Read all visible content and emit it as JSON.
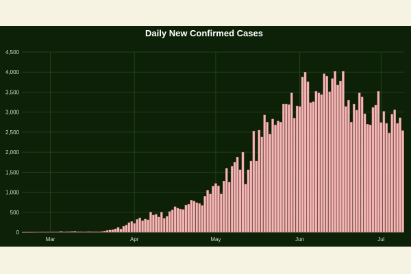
{
  "chart_data": {
    "type": "bar",
    "title": "Daily New Confirmed Cases",
    "xlabel": "",
    "ylabel": "",
    "ylim": [
      0,
      4500
    ],
    "yticks": [
      0,
      500,
      1000,
      1500,
      2000,
      2500,
      3000,
      3500,
      4000,
      4500
    ],
    "ytick_labels": [
      "0",
      "500",
      "1,000",
      "1,500",
      "2,000",
      "2,500",
      "3,000",
      "3,500",
      "4,000",
      "4,500"
    ],
    "xtick_labels": [
      {
        "label": "Mar",
        "index": 10
      },
      {
        "label": "Apr",
        "index": 41
      },
      {
        "label": "May",
        "index": 71
      },
      {
        "label": "Jun",
        "index": 102
      },
      {
        "label": "Jul",
        "index": 132
      }
    ],
    "grid": true,
    "colors": {
      "bar": "#f6b8b6",
      "background": "#0c2108",
      "page": "#f6f3e2"
    },
    "values": [
      2,
      2,
      3,
      3,
      4,
      5,
      6,
      8,
      5,
      7,
      6,
      9,
      7,
      10,
      22,
      8,
      12,
      15,
      18,
      25,
      14,
      12,
      9,
      10,
      16,
      14,
      11,
      13,
      10,
      18,
      32,
      45,
      56,
      62,
      85,
      120,
      80,
      150,
      180,
      240,
      270,
      220,
      320,
      360,
      290,
      330,
      310,
      500,
      430,
      450,
      380,
      500,
      350,
      400,
      520,
      560,
      640,
      600,
      580,
      570,
      680,
      700,
      800,
      780,
      740,
      720,
      670,
      900,
      1050,
      960,
      1150,
      1220,
      1160,
      960,
      1280,
      1600,
      1250,
      1650,
      1750,
      1880,
      1560,
      2000,
      1200,
      1560,
      1780,
      2530,
      1780,
      2550,
      2380,
      2930,
      2750,
      2450,
      2830,
      2680,
      2780,
      2750,
      3200,
      3200,
      3190,
      3480,
      2850,
      3150,
      3140,
      3880,
      4000,
      3760,
      3240,
      3260,
      3520,
      3480,
      3440,
      3960,
      3900,
      3510,
      3840,
      4020,
      3680,
      3780,
      4020,
      3140,
      3300,
      2750,
      3200,
      3050,
      3480,
      3380,
      2960,
      2700,
      2680,
      3120,
      3180,
      3520,
      2740,
      3020,
      2720,
      2480,
      2950,
      3060,
      2720,
      2860,
      2540
    ]
  }
}
